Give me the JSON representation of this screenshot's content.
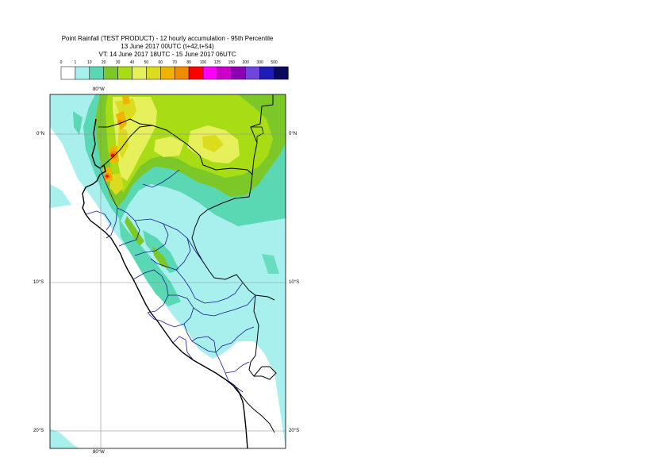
{
  "title": {
    "line1": "Point Rainfall (TEST PRODUCT) - 12 hourly accumulation - 95th Percentile",
    "line2": "13 June 2017 00UTC (t+42,t+54)",
    "line3": "VT: 14 June 2017 18UTC - 15 June 2017 06UTC"
  },
  "legend": {
    "thresholds": [
      "0",
      "1",
      "10",
      "20",
      "30",
      "40",
      "50",
      "60",
      "70",
      "80",
      "100",
      "125",
      "150",
      "200",
      "300",
      "500"
    ],
    "colors": [
      "#ffffff",
      "#a8f0ee",
      "#5ad8b4",
      "#7cc828",
      "#a8dc14",
      "#e6f05a",
      "#dcdc1e",
      "#f0b400",
      "#f08c00",
      "#ff0000",
      "#ff00ff",
      "#c800c8",
      "#8c00b4",
      "#6e46dc",
      "#1e1eb4",
      "#0a0a5a"
    ]
  },
  "axes": {
    "lon_top": "80°W",
    "lon_bottom": "80°W",
    "lat_labels_left": [
      "0°N",
      "10°S",
      "20°S"
    ],
    "lat_labels_right": [
      "0°N",
      "10°S",
      "20°S"
    ]
  },
  "map": {
    "region": "Peru / Ecuador",
    "background_color": "#ffffff",
    "border_color": "#000080",
    "coast_color": "#000000"
  }
}
